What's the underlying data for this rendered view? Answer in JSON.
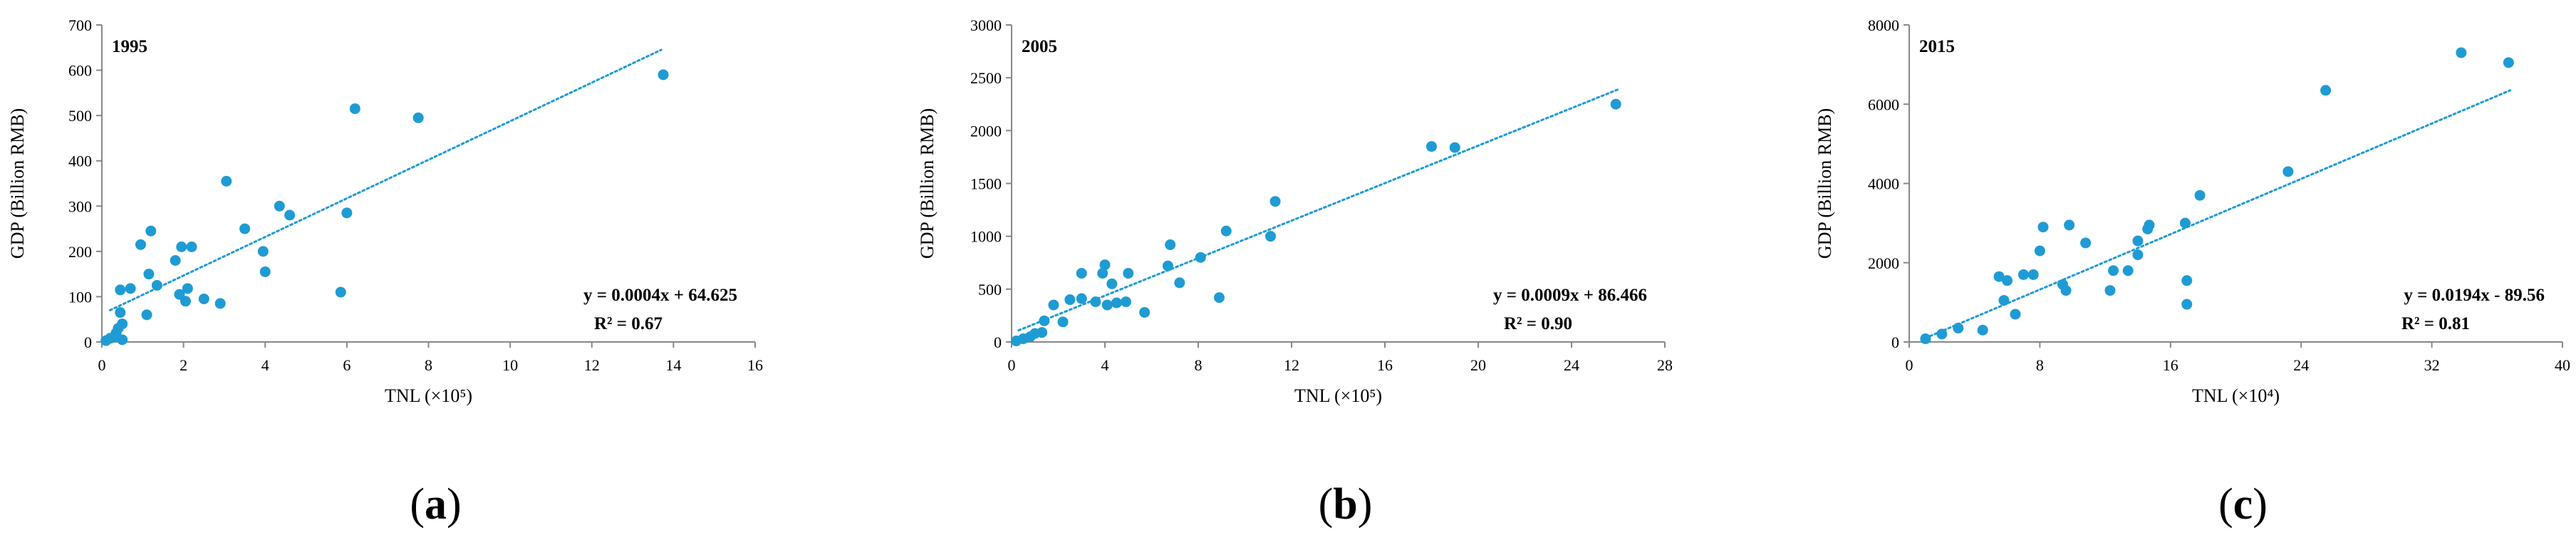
{
  "colors": {
    "point": "#1f9bd4",
    "trend": "#1f9bd4",
    "axis": "#888888"
  },
  "chart_data": [
    {
      "type": "scatter",
      "panel": "(a)",
      "panel_letter": "a",
      "title": "1995",
      "xlabel": "TNL (×10⁵)",
      "ylabel": "GDP (Billion RMB)",
      "xlim": [
        0,
        16
      ],
      "ylim": [
        0,
        700
      ],
      "xticks": [
        0,
        2,
        4,
        6,
        8,
        10,
        12,
        14,
        16
      ],
      "yticks": [
        0,
        100,
        200,
        300,
        400,
        500,
        600,
        700
      ],
      "equation": "y = 0.0004x + 64.625",
      "r2": "R² = 0.67",
      "trend": {
        "x0": 0.2,
        "y0": 70,
        "x1": 13.7,
        "y1": 645
      },
      "points": [
        [
          0.1,
          3
        ],
        [
          0.2,
          8
        ],
        [
          0.3,
          12
        ],
        [
          0.35,
          20
        ],
        [
          0.4,
          30
        ],
        [
          0.45,
          65
        ],
        [
          0.5,
          5
        ],
        [
          0.5,
          40
        ],
        [
          0.45,
          115
        ],
        [
          0.7,
          118
        ],
        [
          0.95,
          215
        ],
        [
          1.1,
          60
        ],
        [
          1.15,
          150
        ],
        [
          1.2,
          245
        ],
        [
          1.35,
          125
        ],
        [
          1.8,
          180
        ],
        [
          1.9,
          105
        ],
        [
          1.95,
          210
        ],
        [
          2.05,
          90
        ],
        [
          2.1,
          118
        ],
        [
          2.2,
          210
        ],
        [
          2.5,
          95
        ],
        [
          2.9,
          85
        ],
        [
          3.05,
          355
        ],
        [
          3.5,
          250
        ],
        [
          3.95,
          200
        ],
        [
          4.0,
          155
        ],
        [
          4.35,
          300
        ],
        [
          4.6,
          280
        ],
        [
          5.85,
          110
        ],
        [
          6.0,
          285
        ],
        [
          6.2,
          515
        ],
        [
          7.75,
          495
        ],
        [
          13.75,
          590
        ]
      ]
    },
    {
      "type": "scatter",
      "panel": "(b)",
      "panel_letter": "b",
      "title": "2005",
      "xlabel": "TNL (×10⁵)",
      "ylabel": "GDP (Billion RMB)",
      "xlim": [
        0,
        28
      ],
      "ylim": [
        0,
        3000
      ],
      "xticks": [
        0,
        4,
        8,
        12,
        16,
        20,
        24,
        28
      ],
      "yticks": [
        0,
        500,
        1000,
        1500,
        2000,
        2500,
        3000
      ],
      "equation": "y = 0.0009x + 86.466",
      "r2": "R² = 0.90",
      "trend": {
        "x0": 0.3,
        "y0": 110,
        "x1": 26.0,
        "y1": 2390
      },
      "points": [
        [
          0.2,
          10
        ],
        [
          0.5,
          30
        ],
        [
          0.8,
          50
        ],
        [
          1.0,
          80
        ],
        [
          1.3,
          90
        ],
        [
          1.4,
          200
        ],
        [
          1.8,
          350
        ],
        [
          2.2,
          190
        ],
        [
          2.5,
          400
        ],
        [
          3.0,
          410
        ],
        [
          3.0,
          650
        ],
        [
          3.6,
          380
        ],
        [
          3.9,
          650
        ],
        [
          4.0,
          730
        ],
        [
          4.1,
          350
        ],
        [
          4.3,
          550
        ],
        [
          4.5,
          370
        ],
        [
          4.9,
          380
        ],
        [
          5.0,
          650
        ],
        [
          5.7,
          280
        ],
        [
          6.7,
          720
        ],
        [
          6.8,
          920
        ],
        [
          7.2,
          560
        ],
        [
          8.1,
          800
        ],
        [
          8.9,
          420
        ],
        [
          9.2,
          1050
        ],
        [
          11.1,
          1000
        ],
        [
          11.3,
          1330
        ],
        [
          18.0,
          1850
        ],
        [
          19.0,
          1840
        ],
        [
          25.9,
          2250
        ]
      ]
    },
    {
      "type": "scatter",
      "panel": "(c)",
      "panel_letter": "c",
      "title": "2015",
      "xlabel": "TNL (×10⁴)",
      "ylabel": "GDP (Billion RMB)",
      "xlim": [
        0,
        40
      ],
      "ylim": [
        0,
        8000
      ],
      "xticks": [
        0,
        8,
        16,
        24,
        32,
        40
      ],
      "yticks": [
        0,
        2000,
        4000,
        6000,
        8000
      ],
      "equation": "y = 0.0194x - 89.56",
      "r2": "R² = 0.81",
      "trend": {
        "x0": 1.0,
        "y0": 100,
        "x1": 36.8,
        "y1": 6350
      },
      "points": [
        [
          1.0,
          80
        ],
        [
          2.0,
          200
        ],
        [
          3.0,
          350
        ],
        [
          4.5,
          300
        ],
        [
          5.5,
          1650
        ],
        [
          5.8,
          1050
        ],
        [
          6.0,
          1550
        ],
        [
          6.5,
          700
        ],
        [
          7.0,
          1700
        ],
        [
          7.6,
          1700
        ],
        [
          8.0,
          2300
        ],
        [
          8.2,
          2900
        ],
        [
          9.4,
          1450
        ],
        [
          9.6,
          1300
        ],
        [
          9.8,
          2950
        ],
        [
          10.8,
          2500
        ],
        [
          12.3,
          1300
        ],
        [
          12.5,
          1800
        ],
        [
          13.4,
          1800
        ],
        [
          14.0,
          2200
        ],
        [
          14.0,
          2550
        ],
        [
          14.6,
          2850
        ],
        [
          14.7,
          2950
        ],
        [
          16.9,
          3000
        ],
        [
          17.0,
          1550
        ],
        [
          17.0,
          950
        ],
        [
          17.8,
          3700
        ],
        [
          23.2,
          4300
        ],
        [
          25.5,
          6350
        ],
        [
          33.8,
          7300
        ],
        [
          36.7,
          7050
        ]
      ]
    }
  ]
}
